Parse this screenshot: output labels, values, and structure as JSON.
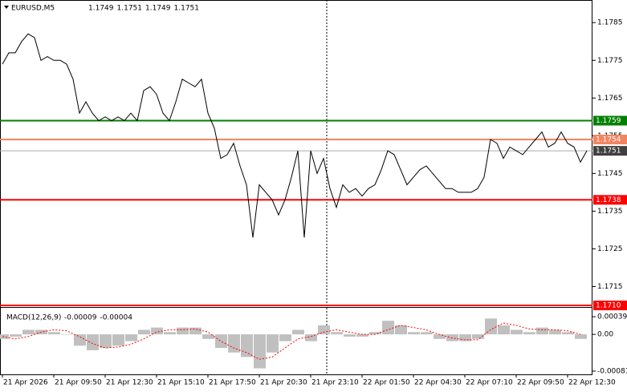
{
  "chart_data": [
    {
      "type": "line",
      "title": "EURUSD,M5",
      "ohlc": [
        1.1749,
        1.1751,
        1.1749,
        1.1751
      ],
      "color": "#000000",
      "categories": [
        "21 Apr 2026",
        null,
        null,
        null,
        null,
        null,
        null,
        null,
        "21 Apr 09:50",
        null,
        null,
        null,
        null,
        null,
        null,
        null,
        "21 Apr 12:30",
        null,
        null,
        null,
        null,
        null,
        null,
        null,
        "21 Apr 15:10",
        null,
        null,
        null,
        null,
        null,
        null,
        null,
        "21 Apr 17:50",
        null,
        null,
        null,
        null,
        null,
        null,
        null,
        "21 Apr 20:30",
        null,
        null,
        null,
        null,
        null,
        null,
        null,
        "21 Apr 23:10",
        null,
        null,
        null,
        null,
        null,
        null,
        null,
        "22 Apr 01:50",
        null,
        null,
        null,
        null,
        null,
        null,
        null,
        "22 Apr 04:30",
        null,
        null,
        null,
        null,
        null,
        null,
        null,
        "22 Apr 07:10",
        null,
        null,
        null,
        null,
        null,
        null,
        null,
        "22 Apr 09:50",
        null,
        null,
        null,
        null,
        null,
        null,
        null,
        "22 Apr 12:30",
        null,
        null,
        null
      ],
      "values": [
        1.1774,
        1.1777,
        1.1777,
        1.178,
        1.1782,
        1.1781,
        1.1775,
        1.1776,
        1.1775,
        1.1775,
        1.1774,
        1.177,
        1.1761,
        1.1764,
        1.1761,
        1.1759,
        1.176,
        1.1759,
        1.176,
        1.1759,
        1.1761,
        1.1759,
        1.1767,
        1.1768,
        1.1766,
        1.1761,
        1.1759,
        1.1764,
        1.177,
        1.1769,
        1.1768,
        1.177,
        1.1761,
        1.1757,
        1.1749,
        1.175,
        1.1753,
        1.1747,
        1.1742,
        1.1728,
        1.1742,
        1.174,
        1.1738,
        1.1734,
        1.1738,
        1.1744,
        1.1751,
        1.1728,
        1.1751,
        1.1745,
        1.1749,
        1.1741,
        1.1736,
        1.1742,
        1.174,
        1.1741,
        1.1739,
        1.1741,
        1.1742,
        1.1746,
        1.1751,
        1.175,
        1.1746,
        1.1742,
        1.1744,
        1.1746,
        1.1747,
        1.1745,
        1.1743,
        1.1741,
        1.1741,
        1.174,
        1.174,
        1.174,
        1.1741,
        1.1744,
        1.1754,
        1.1753,
        1.1749,
        1.1752,
        1.1751,
        1.175,
        1.1752,
        1.1754,
        1.1756,
        1.1752,
        1.1753,
        1.1756,
        1.1753,
        1.1752,
        1.1748,
        1.1751
      ],
      "ylim": [
        1.171,
        1.1791
      ],
      "yticks": [
        1.1785,
        1.1775,
        1.1765,
        1.1755,
        1.1745,
        1.1735,
        1.1725,
        1.1715
      ],
      "levels": [
        {
          "value": 1.1759,
          "color": "#008000"
        },
        {
          "value": 1.1754,
          "color": "#f4845f"
        },
        {
          "value": 1.1751,
          "color": "#aaaaaa",
          "box": "#404040"
        },
        {
          "value": 1.1738,
          "color": "#ff0000"
        },
        {
          "value": 1.171,
          "label": "1.1710",
          "color": "#ff0000"
        }
      ]
    },
    {
      "type": "macd",
      "title": "MACD(12,26,9)",
      "readout": [
        -9e-05,
        -4e-05
      ],
      "color": "#c0c0c0",
      "signal_color": "#ff0000",
      "values": [
        -0.0001,
        -5e-05,
        0.0001,
        0.0001,
        5e-05,
        0,
        -0.00025,
        -0.00035,
        -0.0003,
        -0.00025,
        -0.00015,
        0.0001,
        0.00015,
        5e-05,
        0.00015,
        0.00015,
        -0.0001,
        -0.0003,
        -0.0004,
        -0.0005,
        -0.00075,
        -0.0004,
        -0.00015,
        0.0001,
        -0.00015,
        0.0002,
        5e-05,
        -5e-05,
        -5e-05,
        5e-05,
        0.0003,
        0.0002,
        5e-05,
        5e-05,
        -0.0001,
        -0.00015,
        -0.00015,
        -0.0001,
        0.00035,
        0.0002,
        0.0001,
        5e-05,
        0.00015,
        0.0001,
        5e-05,
        -0.0001
      ],
      "signal": [
        -5e-05,
        -0.0001,
        -5e-05,
        5e-05,
        0.0001,
        8e-05,
        -5e-05,
        -0.0002,
        -0.0003,
        -0.00028,
        -0.00022,
        -0.0001,
        5e-05,
        0.0001,
        0.0001,
        0.00012,
        5e-05,
        -0.00015,
        -0.0003,
        -0.0004,
        -0.00055,
        -0.0005,
        -0.0003,
        -0.0001,
        -5e-05,
        5e-05,
        0.0001,
        5e-05,
        0,
        0,
        0.0001,
        0.0002,
        0.00015,
        0.0001,
        0,
        -8e-05,
        -0.00012,
        -0.00012,
        0.0001,
        0.00025,
        0.0002,
        0.00012,
        0.0001,
        0.0001,
        8e-05,
        0
      ],
      "ylim": [
        -0.0009,
        0.00055
      ],
      "yticks": [
        0.00039,
        {
          "value": 0,
          "label": "0.00"
        },
        -0.00081
      ]
    }
  ]
}
